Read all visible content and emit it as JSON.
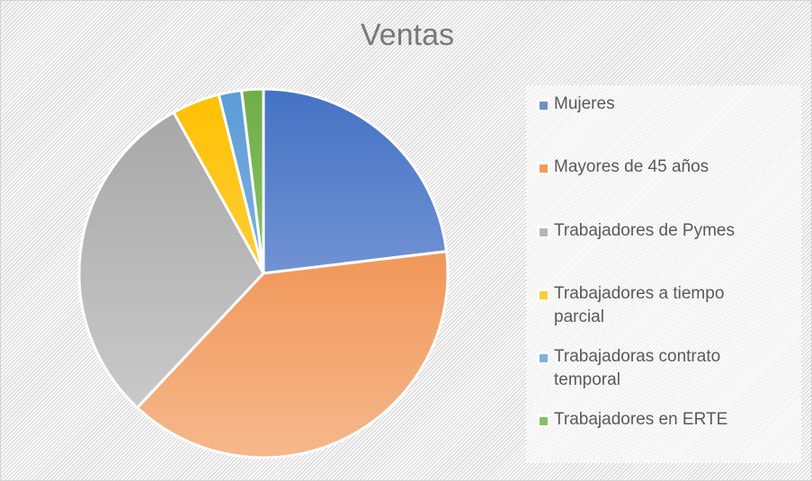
{
  "chart_data": {
    "type": "pie",
    "title": "Ventas",
    "categories": [
      "Mujeres",
      "Mayores de 45 años",
      "Trabajadores de Pymes",
      "Trabajadores a tiempo parcial",
      "Trabajadoras contrato temporal",
      "Trabajadores en ERTE"
    ],
    "values": [
      23.1,
      38.9,
      29.9,
      4.2,
      2.0,
      1.9
    ],
    "unit": "%",
    "start_angle_deg": 0,
    "direction": "clockwise",
    "legend_position": "right",
    "data_labels": false,
    "colors": [
      {
        "top": "#4472c4",
        "bottom": "#9db3e2"
      },
      {
        "top": "#ed7d31",
        "bottom": "#f6b88c"
      },
      {
        "top": "#a5a5a5",
        "bottom": "#cfcfcf"
      },
      {
        "top": "#ffc000",
        "bottom": "#ffdb70"
      },
      {
        "top": "#5b9bd5",
        "bottom": "#a7c8ec"
      },
      {
        "top": "#70ad47",
        "bottom": "#a8d48c"
      }
    ]
  },
  "title": "Ventas",
  "legend": {
    "items": [
      {
        "label": "Mujeres",
        "swatch": "#6e8fd0"
      },
      {
        "label": "Mayores de 45 años",
        "swatch": "#f09a5c"
      },
      {
        "label": "Trabajadores de Pymes",
        "swatch": "#b5b5b5"
      },
      {
        "label": "Trabajadores a tiempo parcial",
        "swatch": "#ffcd38"
      },
      {
        "label": "Trabajadoras contrato temporal",
        "swatch": "#7fb0e0"
      },
      {
        "label": "Trabajadores en ERTE",
        "swatch": "#88bf63"
      }
    ]
  }
}
